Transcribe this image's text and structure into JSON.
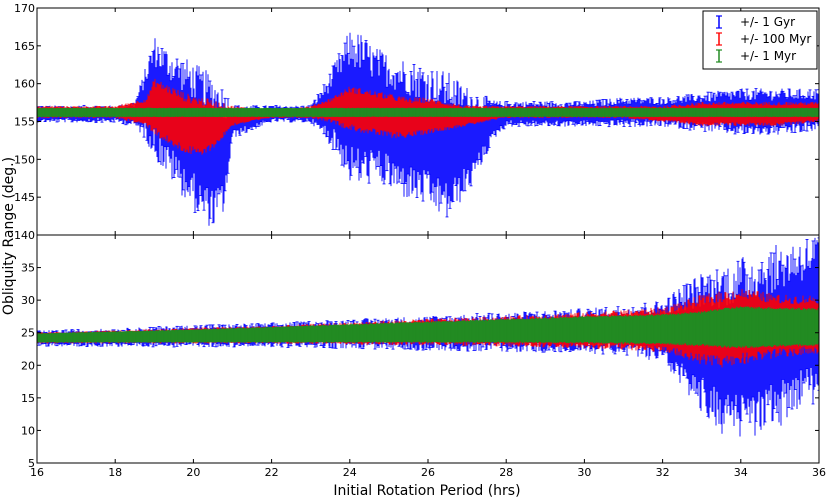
{
  "colors": {
    "gyr": "#0000ff",
    "myr100": "#ff0000",
    "myr1": "#228B22",
    "frame": "#000000",
    "background": "#ffffff"
  },
  "chart_data": {
    "type": "scatter",
    "style": "errorbar",
    "shared_x": true,
    "xlabel": "Initial Rotation Period (hrs)",
    "ylabel": "Obliquity Range (deg.)",
    "xlim": [
      16,
      36
    ],
    "xticks": [
      16,
      18,
      20,
      22,
      24,
      26,
      28,
      30,
      32,
      34,
      36
    ],
    "legend": {
      "placement": "top-right",
      "entries": [
        "+/- 1 Gyr",
        "+/- 100 Myr",
        "+/- 1 Myr"
      ]
    },
    "panels": [
      {
        "name": "top",
        "ylim": [
          140,
          170
        ],
        "yticks": [
          140,
          145,
          150,
          155,
          160,
          165,
          170
        ],
        "series": [
          {
            "name": "+/- 1 Gyr",
            "x": [
              16,
              17,
              18,
              18.5,
              18.8,
              19.0,
              19.3,
              19.6,
              19.9,
              20.2,
              20.5,
              20.8,
              21.0,
              22,
              23,
              23.4,
              23.7,
              24.0,
              24.3,
              24.6,
              25.0,
              25.3,
              25.6,
              25.9,
              26.2,
              26.5,
              26.8,
              27.1,
              27.4,
              27.7,
              28,
              29,
              30,
              31,
              32,
              33,
              34,
              35,
              36
            ],
            "y_upper": [
              157,
              157,
              157,
              157.5,
              162,
              165.5,
              164,
              163,
              162,
              161,
              160,
              158.5,
              157,
              157,
              157,
              160,
              163,
              166,
              165.5,
              164,
              163,
              162.5,
              162,
              161.5,
              161,
              160.5,
              159.5,
              158.5,
              158,
              157.5,
              157.5,
              157.5,
              157.5,
              158,
              158,
              158.5,
              159,
              159,
              159
            ],
            "y_lower": [
              155,
              155,
              155,
              154.5,
              153,
              151,
              149,
              147,
              145,
              143,
              142,
              144,
              153,
              155,
              155,
              153,
              151,
              148,
              147.5,
              148,
              147,
              146,
              145.5,
              145,
              144,
              143,
              145,
              147,
              150,
              153,
              154.5,
              154.5,
              154.5,
              154.5,
              154.5,
              154,
              153.5,
              153.5,
              154
            ]
          },
          {
            "name": "+/- 100 Myr",
            "x": [
              16,
              17,
              18,
              18.8,
              19.0,
              19.4,
              19.8,
              20.2,
              20.6,
              21.0,
              22,
              23,
              23.5,
              24.0,
              24.5,
              25.0,
              25.5,
              26.0,
              26.5,
              27.0,
              27.5,
              28,
              30,
              31,
              32,
              33,
              34,
              35,
              36
            ],
            "y_upper": [
              157,
              157,
              157,
              158,
              160.5,
              159.5,
              158.5,
              158,
              157.5,
              157,
              156.5,
              157,
              158,
              159.5,
              159,
              158.5,
              158,
              158,
              157.5,
              157,
              157,
              157,
              157,
              157,
              157,
              157.5,
              157.5,
              157.5,
              157.5
            ],
            "y_lower": [
              155.5,
              155.5,
              155.5,
              154.5,
              153.5,
              152,
              151,
              150.5,
              152,
              154.5,
              155.5,
              155.5,
              155,
              154,
              153.5,
              153,
              153,
              153.5,
              154,
              154.5,
              155,
              155.5,
              155.5,
              155.5,
              155,
              154.5,
              154.5,
              154.5,
              155
            ]
          },
          {
            "name": "+/- 1 Myr",
            "x": [
              16,
              18,
              20,
              22,
              24,
              26,
              28,
              30,
              32,
              34,
              36
            ],
            "y_upper": [
              156.8,
              156.8,
              156.8,
              156.8,
              156.8,
              156.8,
              156.8,
              156.8,
              156.8,
              156.8,
              156.8
            ],
            "y_lower": [
              155.6,
              155.6,
              155.6,
              155.6,
              155.6,
              155.6,
              155.6,
              155.6,
              155.6,
              155.6,
              155.6
            ]
          }
        ]
      },
      {
        "name": "bottom",
        "ylim": [
          5,
          40
        ],
        "yticks": [
          5,
          10,
          15,
          20,
          25,
          30,
          35
        ],
        "series": [
          {
            "name": "+/- 1 Gyr",
            "x": [
              16,
              18,
              20,
              22,
              24,
              26,
              28,
              30,
              31,
              32,
              32.5,
              33,
              33.5,
              34,
              34.5,
              35,
              35.5,
              36
            ],
            "y_upper": [
              25.2,
              25.5,
              26,
              26.3,
              26.8,
              27.3,
              27.8,
              28.3,
              28.8,
              29.5,
              31.5,
              33,
              34,
              35,
              36,
              37,
              38,
              39
            ],
            "y_lower": [
              23,
              23,
              23,
              23,
              22.8,
              22.6,
              22.4,
              22.2,
              22,
              21,
              17,
              14,
              11,
              10,
              11,
              12,
              14,
              16
            ]
          },
          {
            "name": "+/- 100 Myr",
            "x": [
              16,
              18,
              20,
              22,
              24,
              26,
              28,
              30,
              31,
              32,
              32.5,
              33,
              33.5,
              34,
              34.5,
              35,
              35.5,
              36
            ],
            "y_upper": [
              25,
              25.3,
              25.7,
              26,
              26.5,
              27,
              27.4,
              28,
              28.3,
              28.7,
              29.5,
              30.5,
              31,
              31.5,
              31,
              30.5,
              30.5,
              30.5
            ],
            "y_lower": [
              23.4,
              23.4,
              23.4,
              23.4,
              23.3,
              23.2,
              23,
              22.8,
              22.6,
              22.2,
              21.5,
              20.5,
              20,
              20.5,
              21,
              21.5,
              21.8,
              22
            ]
          },
          {
            "name": "+/- 1 Myr",
            "x": [
              16,
              18,
              20,
              22,
              24,
              26,
              28,
              30,
              32,
              33,
              33.5,
              34,
              35,
              36
            ],
            "y_upper": [
              24.9,
              25.2,
              25.5,
              25.9,
              26.3,
              26.7,
              27.1,
              27.5,
              27.8,
              28.2,
              28.7,
              29,
              28.8,
              28.7
            ],
            "y_lower": [
              23.5,
              23.5,
              23.5,
              23.5,
              23.5,
              23.5,
              23.5,
              23.4,
              23.3,
              23,
              22.8,
              22.7,
              22.9,
              23.1
            ]
          }
        ]
      }
    ]
  }
}
